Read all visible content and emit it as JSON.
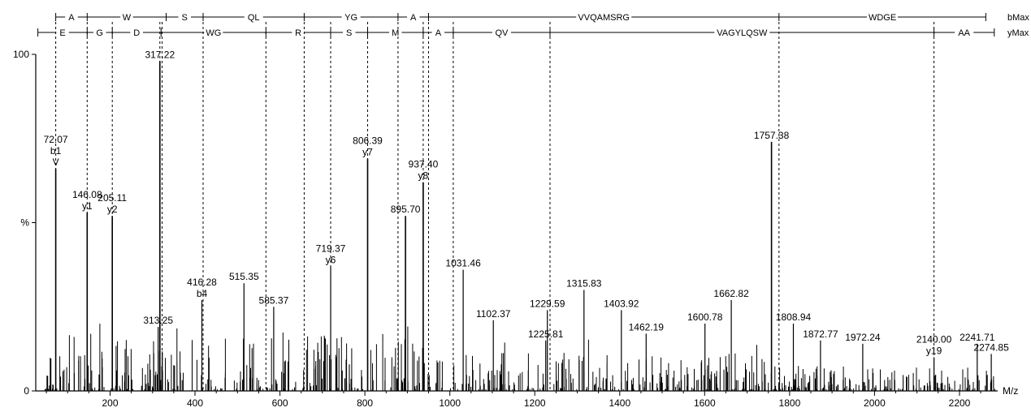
{
  "chart_data": {
    "type": "bar",
    "xlabel": "M/z",
    "ylabel": "%",
    "xlim": [
      25,
      2290
    ],
    "ylim": [
      0,
      100
    ],
    "x_ticks": [
      200,
      400,
      600,
      800,
      1000,
      1200,
      1400,
      1600,
      1800,
      2000,
      2200
    ],
    "y_tick_labels": [
      "100",
      "%",
      "0"
    ],
    "grid": false,
    "labeled_peaks": [
      {
        "mz": 72.07,
        "intensity": 66,
        "label": "72.07",
        "ion": "b1",
        "residue": "V"
      },
      {
        "mz": 146.08,
        "intensity": 53,
        "label": "146.08",
        "ion": "y1"
      },
      {
        "mz": 205.11,
        "intensity": 52,
        "label": "205.11",
        "ion": "y2"
      },
      {
        "mz": 313.25,
        "intensity": 19,
        "label": "313.25"
      },
      {
        "mz": 317.22,
        "intensity": 98,
        "label": "317.22"
      },
      {
        "mz": 416.28,
        "intensity": 27,
        "label": "416.28",
        "ion": "b4"
      },
      {
        "mz": 515.35,
        "intensity": 32,
        "label": "515.35"
      },
      {
        "mz": 585.37,
        "intensity": 25,
        "label": "585.37"
      },
      {
        "mz": 719.37,
        "intensity": 37,
        "label": "719.37",
        "ion": "y6"
      },
      {
        "mz": 806.39,
        "intensity": 69,
        "label": "806.39",
        "ion": "y7"
      },
      {
        "mz": 895.7,
        "intensity": 52,
        "label": "895.70"
      },
      {
        "mz": 937.4,
        "intensity": 62,
        "label": "937.40",
        "ion": "y8"
      },
      {
        "mz": 1031.46,
        "intensity": 36,
        "label": "1031.46"
      },
      {
        "mz": 1102.37,
        "intensity": 21,
        "label": "1102.37"
      },
      {
        "mz": 1225.81,
        "intensity": 15,
        "label": "1225.81"
      },
      {
        "mz": 1229.59,
        "intensity": 24,
        "label": "1229.59"
      },
      {
        "mz": 1315.83,
        "intensity": 30,
        "label": "1315.83"
      },
      {
        "mz": 1403.92,
        "intensity": 24,
        "label": "1403.92"
      },
      {
        "mz": 1462.19,
        "intensity": 17,
        "label": "1462.19"
      },
      {
        "mz": 1600.78,
        "intensity": 20,
        "label": "1600.78"
      },
      {
        "mz": 1662.82,
        "intensity": 27,
        "label": "1662.82"
      },
      {
        "mz": 1757.38,
        "intensity": 74,
        "label": "1757.38"
      },
      {
        "mz": 1808.94,
        "intensity": 20,
        "label": "1808.94"
      },
      {
        "mz": 1872.77,
        "intensity": 15,
        "label": "1872.77"
      },
      {
        "mz": 1972.24,
        "intensity": 14,
        "label": "1972.24"
      },
      {
        "mz": 2140.0,
        "intensity": 10,
        "label": "2140.00",
        "ion": "y19"
      },
      {
        "mz": 2241.71,
        "intensity": 14,
        "label": "2241.71"
      },
      {
        "mz": 2274.85,
        "intensity": 11,
        "label": "2274.85"
      }
    ],
    "b_series": {
      "name": "bMax",
      "segments": [
        {
          "label": "A",
          "from": 72.07,
          "to": 146
        },
        {
          "label": "W",
          "from": 146,
          "to": 332
        },
        {
          "label": "S",
          "from": 332,
          "to": 419
        },
        {
          "label": "QL",
          "from": 419,
          "to": 657
        },
        {
          "label": "YG",
          "from": 657,
          "to": 878
        },
        {
          "label": "A",
          "from": 878,
          "to": 950
        },
        {
          "label": "VVQAMSRG",
          "from": 950,
          "to": 1775
        },
        {
          "label": "WDGE",
          "from": 1775,
          "to": 2262
        }
      ]
    },
    "y_series": {
      "name": "yMax",
      "segments": [
        {
          "label": "E",
          "from": 30,
          "to": 146.08
        },
        {
          "label": "G",
          "from": 146.08,
          "to": 205.11
        },
        {
          "label": "D",
          "from": 205.11,
          "to": 320
        },
        {
          "label": "WG",
          "from": 320,
          "to": 567
        },
        {
          "label": "R",
          "from": 567,
          "to": 719.37
        },
        {
          "label": "S",
          "from": 719.37,
          "to": 806.39
        },
        {
          "label": "M",
          "from": 806.39,
          "to": 937.4
        },
        {
          "label": "A",
          "from": 937.4,
          "to": 1008
        },
        {
          "label": "QV",
          "from": 1008,
          "to": 1236
        },
        {
          "label": "VAGYLQSW",
          "from": 1236,
          "to": 2140
        },
        {
          "label": "AA",
          "from": 2140,
          "to": 2282
        }
      ]
    },
    "fragment_boundaries": [
      72.07,
      146.08,
      205.11,
      317.22,
      322.5,
      419,
      567,
      657,
      719.37,
      806.39,
      878,
      937.4,
      950,
      1008,
      1236,
      1775,
      2140
    ]
  }
}
